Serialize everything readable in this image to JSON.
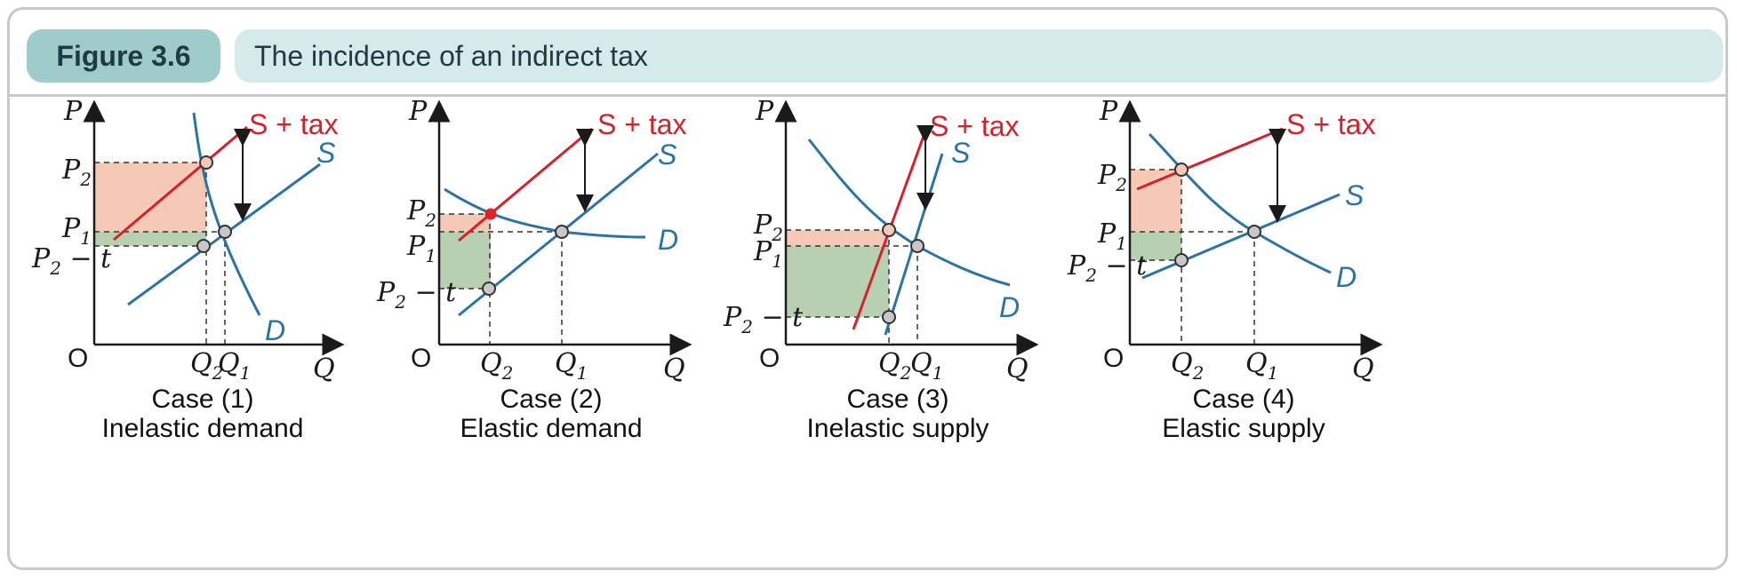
{
  "figure": {
    "label": "Figure 3.6",
    "title": "The incidence of an indirect tax"
  },
  "colors": {
    "supply_demand": "#2a73a4",
    "supply_plus_tax": "#d3222a",
    "consumer_burden": "#f5c9b6",
    "producer_burden": "#b8d0b1",
    "frame": "#c6cacb"
  },
  "panels": [
    {
      "case": "Case (1)",
      "description": "Inelastic demand",
      "axis_y": "P",
      "axis_x": "Q",
      "origin": "O",
      "p2": "P",
      "p2_sub": "2",
      "p1": "P",
      "p1_sub": "1",
      "p2t": "P",
      "p2t_sub": "2",
      "p2t_tail": " − t",
      "q2": "Q",
      "q2_sub": "2",
      "q1": "Q",
      "q1_sub": "1",
      "s_tax_label": "S + tax",
      "s_label": "S",
      "d_label": "D"
    },
    {
      "case": "Case (2)",
      "description": "Elastic demand",
      "axis_y": "P",
      "axis_x": "Q",
      "origin": "O",
      "p2": "P",
      "p2_sub": "2",
      "p1": "P",
      "p1_sub": "1",
      "p2t": "P",
      "p2t_sub": "2",
      "p2t_tail": " − t",
      "q2": "Q",
      "q2_sub": "2",
      "q1": "Q",
      "q1_sub": "1",
      "s_tax_label": "S + tax",
      "s_label": "S",
      "d_label": "D"
    },
    {
      "case": "Case (3)",
      "description": "Inelastic supply",
      "axis_y": "P",
      "axis_x": "Q",
      "origin": "O",
      "p2": "P",
      "p2_sub": "2",
      "p1": "P",
      "p1_sub": "1",
      "p2t": "P",
      "p2t_sub": "2",
      "p2t_tail": " − t",
      "q2": "Q",
      "q2_sub": "2",
      "q1": "Q",
      "q1_sub": "1",
      "s_tax_label": "S + tax",
      "s_label": "S",
      "d_label": "D"
    },
    {
      "case": "Case (4)",
      "description": "Elastic supply",
      "axis_y": "P",
      "axis_x": "Q",
      "origin": "O",
      "p2": "P",
      "p2_sub": "2",
      "p1": "P",
      "p1_sub": "1",
      "p2t": "P",
      "p2t_sub": "2",
      "p2t_tail": " − t",
      "q2": "Q",
      "q2_sub": "2",
      "q1": "Q",
      "q1_sub": "1",
      "s_tax_label": "S + tax",
      "s_label": "S",
      "d_label": "D"
    }
  ]
}
